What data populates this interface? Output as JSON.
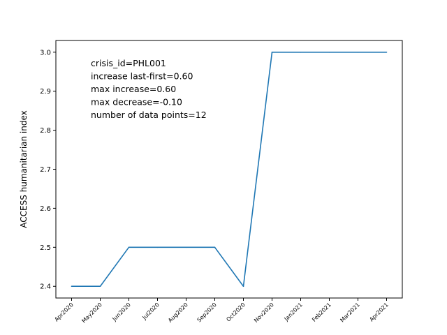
{
  "chart_data": {
    "type": "line",
    "categories": [
      "Apr2020",
      "May2020",
      "Jun2020",
      "Jul2020",
      "Aug2020",
      "Sep2020",
      "Oct2020",
      "Nov2020",
      "Jan2021",
      "Feb2021",
      "Mar2021",
      "Apr2021"
    ],
    "series": [
      {
        "values": [
          2.4,
          2.4,
          2.5,
          2.5,
          2.5,
          2.5,
          2.4,
          3.0,
          3.0,
          3.0,
          3.0,
          3.0
        ],
        "color": "#1f77b4"
      }
    ],
    "ylabel": "ACCESS humanitarian index",
    "xlabel": "",
    "title": "",
    "ylim": [
      2.37,
      3.03
    ],
    "yticks": [
      2.4,
      2.5,
      2.6,
      2.7,
      2.8,
      2.9,
      3.0
    ],
    "ytick_labels": [
      "2.4",
      "2.5",
      "2.6",
      "2.7",
      "2.8",
      "2.9",
      "3.0"
    ],
    "grid": false,
    "annotations": [
      "crisis_id=PHL001",
      "increase last-first=0.60",
      "max increase=0.60",
      "max decrease=-0.10",
      "number of data points=12"
    ]
  }
}
